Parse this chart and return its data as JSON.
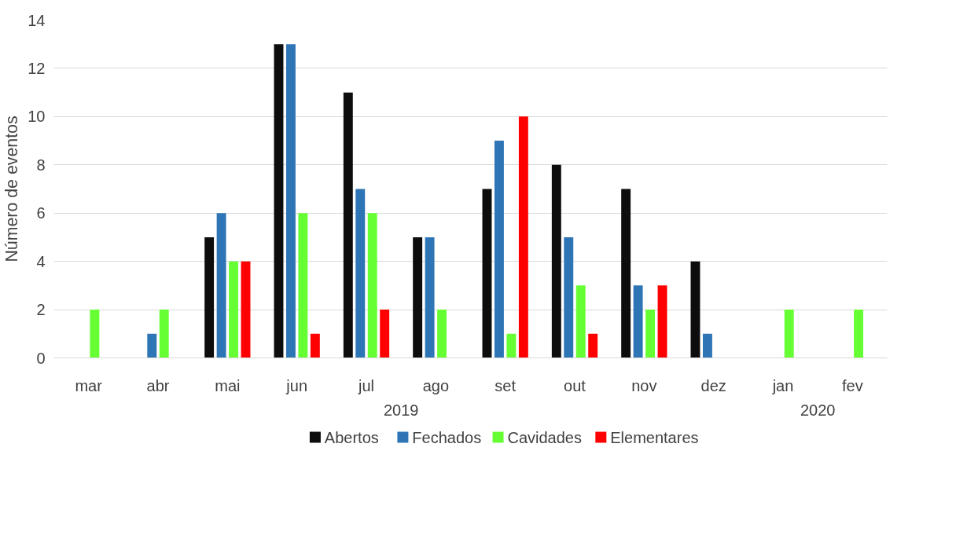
{
  "chart_data": {
    "type": "bar",
    "ylabel": "Número de eventos",
    "categories": [
      "mar",
      "abr",
      "mai",
      "jun",
      "jul",
      "ago",
      "set",
      "out",
      "nov",
      "dez",
      "jan",
      "fev"
    ],
    "series": [
      {
        "name": "Abertos",
        "color": "#0d0d0d",
        "values": [
          null,
          null,
          5,
          13,
          11,
          5,
          7,
          8,
          7,
          4,
          null,
          null
        ]
      },
      {
        "name": "Fechados",
        "color": "#2e75b6",
        "values": [
          null,
          1,
          6,
          13,
          7,
          5,
          9,
          5,
          3,
          1,
          null,
          null
        ]
      },
      {
        "name": "Cavidades",
        "color": "#66ff33",
        "values": [
          2,
          2,
          4,
          6,
          6,
          2,
          1,
          3,
          2,
          null,
          2,
          2
        ]
      },
      {
        "name": "Elementares",
        "color": "#ff0000",
        "values": [
          null,
          null,
          4,
          1,
          2,
          null,
          10,
          1,
          3,
          null,
          null,
          null
        ]
      }
    ],
    "annotations": [
      "2019",
      "2020"
    ],
    "ylim": [
      0,
      14
    ],
    "yticks": [
      0,
      2,
      4,
      6,
      8,
      10,
      12,
      14
    ],
    "grid": "y",
    "legend": "bottom"
  }
}
